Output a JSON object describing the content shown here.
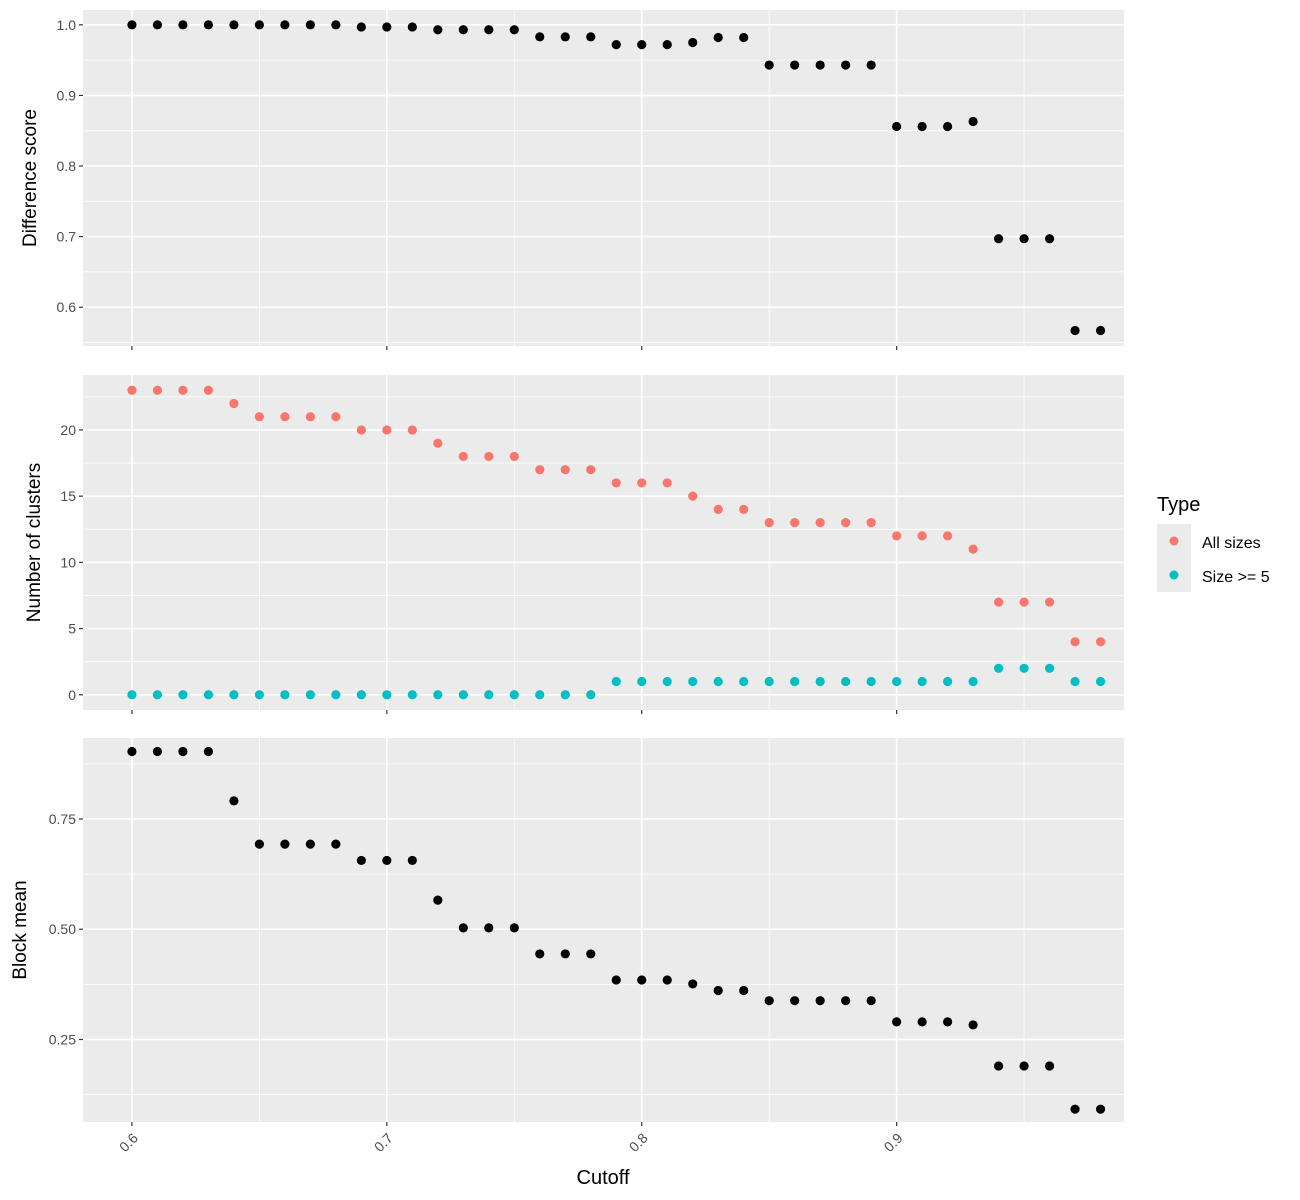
{
  "figure": {
    "xlabel": "Cutoff",
    "x_ticks": [
      "0.6",
      "0.7",
      "0.8",
      "0.9"
    ]
  },
  "legend": {
    "title": "Type",
    "items": [
      {
        "label": "All sizes",
        "color": "#F8766D"
      },
      {
        "label": "Size >= 5",
        "color": "#00BFC4"
      }
    ]
  },
  "colors": {
    "panel_bg": "#EBEBEB",
    "grid": "#FFFFFF",
    "point_black": "#000000",
    "axis_text": "#4D4D4D",
    "axis_title": "#000000"
  },
  "chart_data": [
    {
      "type": "scatter",
      "title": "",
      "xlabel": "Cutoff",
      "ylabel": "Difference score",
      "xlim": [
        0.5808,
        0.9892
      ],
      "ylim": [
        0.545,
        1.021
      ],
      "x_ticks": [
        0.6,
        0.7,
        0.8,
        0.9
      ],
      "y_ticks": [
        0.6,
        0.7,
        0.8,
        0.9,
        1.0
      ],
      "y_tick_labels": [
        "0.6",
        "0.7",
        "0.8",
        "0.9",
        "1.0"
      ],
      "grid": true,
      "x": [
        0.6,
        0.61,
        0.62,
        0.63,
        0.64,
        0.65,
        0.66,
        0.67,
        0.68,
        0.69,
        0.7,
        0.71,
        0.72,
        0.73,
        0.74,
        0.75,
        0.76,
        0.77,
        0.78,
        0.79,
        0.8,
        0.81,
        0.82,
        0.83,
        0.84,
        0.85,
        0.86,
        0.87,
        0.88,
        0.89,
        0.9,
        0.91,
        0.92,
        0.93,
        0.94,
        0.95,
        0.96,
        0.97,
        0.98
      ],
      "series": [
        {
          "color": "#000000",
          "values": [
            1.0,
            1.0,
            1.0,
            1.0,
            1.0,
            1.0,
            1.0,
            1.0,
            1.0,
            0.997,
            0.997,
            0.997,
            0.993,
            0.993,
            0.993,
            0.993,
            0.983,
            0.983,
            0.983,
            0.972,
            0.972,
            0.972,
            0.975,
            0.982,
            0.982,
            0.943,
            0.943,
            0.943,
            0.943,
            0.943,
            0.856,
            0.856,
            0.856,
            0.863,
            0.697,
            0.697,
            0.697,
            0.567,
            0.567
          ]
        }
      ]
    },
    {
      "type": "scatter",
      "title": "",
      "xlabel": "Cutoff",
      "ylabel": "Number of clusters",
      "xlim": [
        0.5808,
        0.9892
      ],
      "ylim": [
        -1.15,
        24.15
      ],
      "x_ticks": [
        0.6,
        0.7,
        0.8,
        0.9
      ],
      "y_ticks": [
        0,
        5,
        10,
        15,
        20
      ],
      "y_tick_labels": [
        "0",
        "5",
        "10",
        "15",
        "20"
      ],
      "grid": true,
      "legend": {
        "title": "Type",
        "position": "right"
      },
      "x": [
        0.6,
        0.61,
        0.62,
        0.63,
        0.64,
        0.65,
        0.66,
        0.67,
        0.68,
        0.69,
        0.7,
        0.71,
        0.72,
        0.73,
        0.74,
        0.75,
        0.76,
        0.77,
        0.78,
        0.79,
        0.8,
        0.81,
        0.82,
        0.83,
        0.84,
        0.85,
        0.86,
        0.87,
        0.88,
        0.89,
        0.9,
        0.91,
        0.92,
        0.93,
        0.94,
        0.95,
        0.96,
        0.97,
        0.98
      ],
      "series": [
        {
          "name": "All sizes",
          "color": "#F8766D",
          "values": [
            23,
            23,
            23,
            23,
            22,
            21,
            21,
            21,
            21,
            20,
            20,
            20,
            19,
            18,
            18,
            18,
            17,
            17,
            17,
            16,
            16,
            16,
            15,
            14,
            14,
            13,
            13,
            13,
            13,
            13,
            12,
            12,
            12,
            11,
            7,
            7,
            7,
            4,
            4
          ]
        },
        {
          "name": "Size >= 5",
          "color": "#00BFC4",
          "values": [
            0,
            0,
            0,
            0,
            0,
            0,
            0,
            0,
            0,
            0,
            0,
            0,
            0,
            0,
            0,
            0,
            0,
            0,
            0,
            1,
            1,
            1,
            1,
            1,
            1,
            1,
            1,
            1,
            1,
            1,
            1,
            1,
            1,
            1,
            2,
            2,
            2,
            1,
            1
          ]
        }
      ]
    },
    {
      "type": "scatter",
      "title": "",
      "xlabel": "Cutoff",
      "ylabel": "Block mean",
      "xlim": [
        0.5808,
        0.9892
      ],
      "ylim": [
        0.0629,
        0.9336
      ],
      "x_ticks": [
        0.6,
        0.7,
        0.8,
        0.9
      ],
      "y_ticks": [
        0.25,
        0.5,
        0.75
      ],
      "y_tick_labels": [
        "0.25",
        "0.50",
        "0.75"
      ],
      "grid": true,
      "x": [
        0.6,
        0.61,
        0.62,
        0.63,
        0.64,
        0.65,
        0.66,
        0.67,
        0.68,
        0.69,
        0.7,
        0.71,
        0.72,
        0.73,
        0.74,
        0.75,
        0.76,
        0.77,
        0.78,
        0.79,
        0.8,
        0.81,
        0.82,
        0.83,
        0.84,
        0.85,
        0.86,
        0.87,
        0.88,
        0.89,
        0.9,
        0.91,
        0.92,
        0.93,
        0.94,
        0.95,
        0.96,
        0.97,
        0.98
      ],
      "series": [
        {
          "color": "#000000",
          "values": [
            0.903,
            0.903,
            0.903,
            0.903,
            0.791,
            0.693,
            0.693,
            0.693,
            0.693,
            0.656,
            0.656,
            0.656,
            0.566,
            0.503,
            0.503,
            0.503,
            0.444,
            0.444,
            0.444,
            0.385,
            0.385,
            0.385,
            0.376,
            0.361,
            0.361,
            0.338,
            0.338,
            0.338,
            0.338,
            0.338,
            0.29,
            0.29,
            0.29,
            0.283,
            0.19,
            0.19,
            0.19,
            0.092,
            0.092
          ]
        }
      ]
    }
  ]
}
